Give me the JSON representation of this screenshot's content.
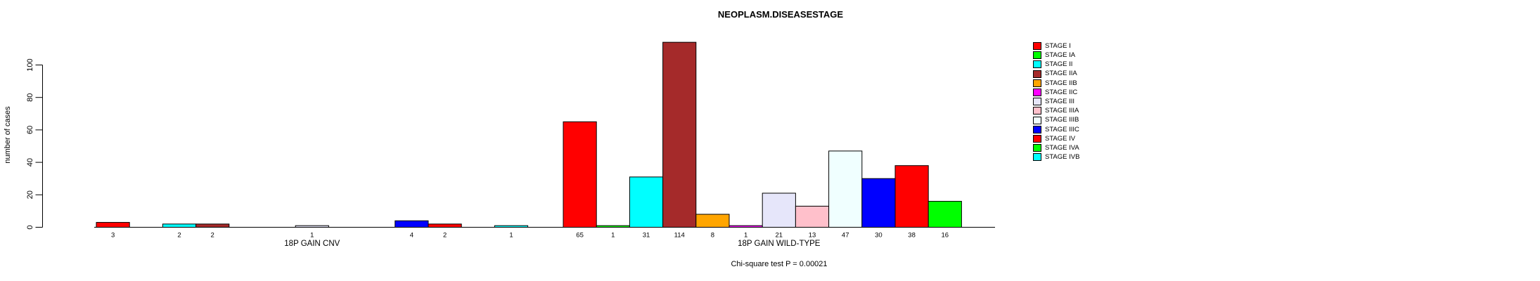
{
  "chart_data": {
    "type": "bar",
    "title": "NEOPLASM.DISEASESTAGE",
    "ylabel": "number of cases",
    "ylim": [
      0,
      100
    ],
    "yticks": [
      0,
      20,
      40,
      60,
      80,
      100
    ],
    "annotation": "Chi-square test P = 0.00021",
    "legend_position": "top-right",
    "grid": false,
    "categories": [
      "STAGE I",
      "STAGE IA",
      "STAGE II",
      "STAGE IIA",
      "STAGE IIB",
      "STAGE IIC",
      "STAGE III",
      "STAGE IIIA",
      "STAGE IIIB",
      "STAGE IIIC",
      "STAGE IV",
      "STAGE IVA",
      "STAGE IVB"
    ],
    "colors": [
      "#FF0000",
      "#00FF00",
      "#00FFFF",
      "#A52A2A",
      "#FFA500",
      "#FF00FF",
      "#E6E6FA",
      "#FFC0CB",
      "#F0FFFF",
      "#0000FF",
      "#FF0000",
      "#00FF00",
      "#00FFFF"
    ],
    "groups": [
      {
        "label": "18P GAIN CNV",
        "values": [
          3,
          0,
          2,
          2,
          0,
          0,
          1,
          0,
          0,
          4,
          2,
          0,
          1
        ]
      },
      {
        "label": "18P GAIN WILD-TYPE",
        "values": [
          65,
          1,
          31,
          114,
          8,
          1,
          21,
          13,
          47,
          30,
          38,
          16,
          0
        ]
      }
    ],
    "bar_value_labels_visible": true,
    "axis_color": "#000000",
    "background_color": "#FFFFFF"
  }
}
